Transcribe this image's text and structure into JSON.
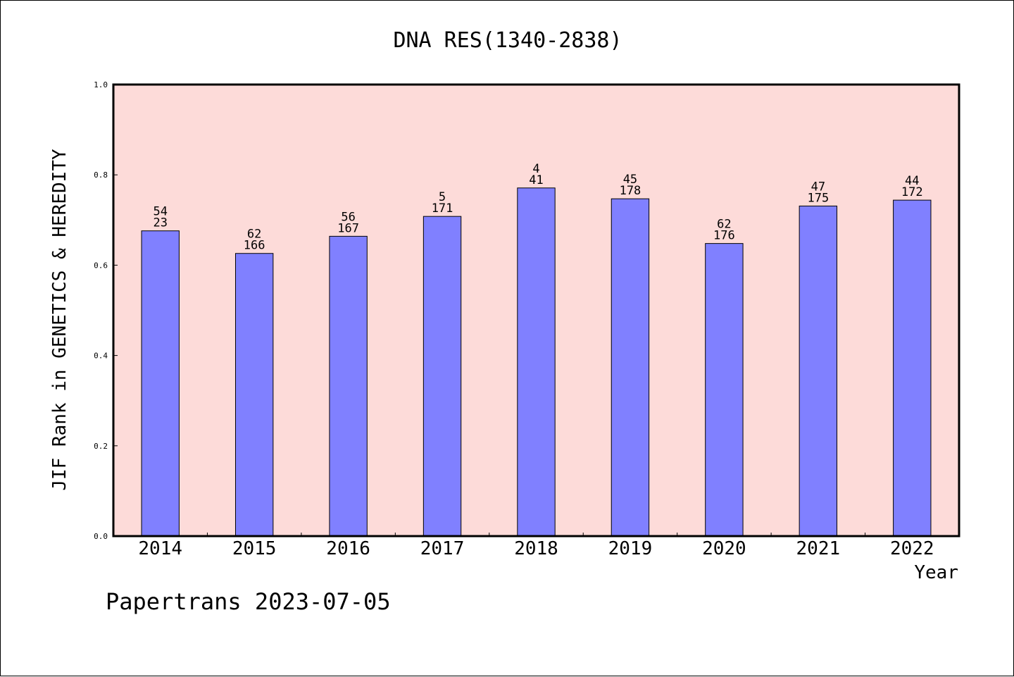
{
  "chart_data": {
    "type": "bar",
    "title": "DNA RES(1340-2838)",
    "ylabel": "JIF Rank in GENETICS & HEREDITY",
    "xlabel": "Year",
    "categories": [
      "2014",
      "2015",
      "2016",
      "2017",
      "2018",
      "2019",
      "2020",
      "2021",
      "2022"
    ],
    "values": [
      0.676,
      0.626,
      0.664,
      0.708,
      0.771,
      0.747,
      0.648,
      0.731,
      0.744
    ],
    "bar_labels": [
      [
        "54",
        "23"
      ],
      [
        "62",
        "166"
      ],
      [
        "56",
        "167"
      ],
      [
        "5",
        "171"
      ],
      [
        "4",
        "41"
      ],
      [
        "45",
        "178"
      ],
      [
        "62",
        "176"
      ],
      [
        "47",
        "175"
      ],
      [
        "44",
        "172"
      ]
    ],
    "ylim": [
      0,
      1
    ],
    "yticks": [
      "0.0",
      "0.2",
      "0.4",
      "0.6",
      "0.8",
      "1.0"
    ],
    "bar_color": "#8080ff",
    "plot_background": "#fddbd9",
    "grid": false,
    "legend": false
  },
  "footer": {
    "text": "Papertrans 2023-07-05"
  }
}
